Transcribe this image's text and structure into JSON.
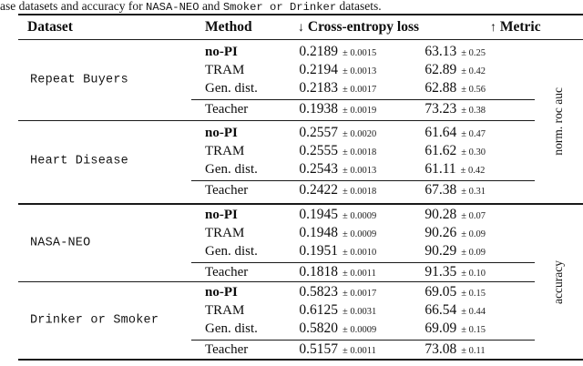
{
  "caption": {
    "prefix": "ase datasets and accuracy for ",
    "dataset_mono_1": "NASA-NEO",
    "conjunction": " and ",
    "dataset_mono_2": "Smoker or Drinker",
    "suffix": " datasets."
  },
  "header": {
    "dataset": "Dataset",
    "method": "Method",
    "ce_arrow": "↓",
    "ce_label": " Cross-entropy loss",
    "metric_arrow": "↑",
    "metric_label": " Metric"
  },
  "groups": [
    {
      "label": "norm. roc auc",
      "blocks": [
        {
          "dataset": "Repeat Buyers",
          "rows": [
            {
              "method": "no-PI",
              "ce": "0.2189",
              "ce_pm": "± 0.0015",
              "metric": "63.13",
              "metric_pm": "± 0.25"
            },
            {
              "method": "TRAM",
              "ce": "0.2194",
              "ce_pm": "± 0.0013",
              "metric": "62.89",
              "metric_pm": "± 0.42"
            },
            {
              "method": "Gen. dist.",
              "ce": "0.2183",
              "ce_pm": "± 0.0017",
              "metric": "62.88",
              "metric_pm": "± 0.56"
            },
            {
              "method": "Teacher",
              "ce": "0.1938",
              "ce_pm": "± 0.0019",
              "metric": "73.23",
              "metric_pm": "± 0.38"
            }
          ]
        },
        {
          "dataset": "Heart Disease",
          "rows": [
            {
              "method": "no-PI",
              "ce": "0.2557",
              "ce_pm": "± 0.0020",
              "metric": "61.64",
              "metric_pm": "± 0.47"
            },
            {
              "method": "TRAM",
              "ce": "0.2555",
              "ce_pm": "± 0.0018",
              "metric": "61.62",
              "metric_pm": "± 0.30"
            },
            {
              "method": "Gen. dist.",
              "ce": "0.2543",
              "ce_pm": "± 0.0013",
              "metric": "61.11",
              "metric_pm": "± 0.42"
            },
            {
              "method": "Teacher",
              "ce": "0.2422",
              "ce_pm": "± 0.0018",
              "metric": "67.38",
              "metric_pm": "± 0.31"
            }
          ]
        }
      ]
    },
    {
      "label": "accuracy",
      "blocks": [
        {
          "dataset": "NASA-NEO",
          "rows": [
            {
              "method": "no-PI",
              "ce": "0.1945",
              "ce_pm": "± 0.0009",
              "metric": "90.28",
              "metric_pm": "± 0.07"
            },
            {
              "method": "TRAM",
              "ce": "0.1948",
              "ce_pm": "± 0.0009",
              "metric": "90.26",
              "metric_pm": "± 0.09"
            },
            {
              "method": "Gen. dist.",
              "ce": "0.1951",
              "ce_pm": "± 0.0010",
              "metric": "90.29",
              "metric_pm": "± 0.09"
            },
            {
              "method": "Teacher",
              "ce": "0.1818",
              "ce_pm": "± 0.0011",
              "metric": "91.35",
              "metric_pm": "± 0.10"
            }
          ]
        },
        {
          "dataset": "Drinker or Smoker",
          "rows": [
            {
              "method": "no-PI",
              "ce": "0.5823",
              "ce_pm": "± 0.0017",
              "metric": "69.05",
              "metric_pm": "± 0.15"
            },
            {
              "method": "TRAM",
              "ce": "0.6125",
              "ce_pm": "± 0.0031",
              "metric": "66.54",
              "metric_pm": "± 0.44"
            },
            {
              "method": "Gen. dist.",
              "ce": "0.5820",
              "ce_pm": "± 0.0009",
              "metric": "69.09",
              "metric_pm": "± 0.15"
            },
            {
              "method": "Teacher",
              "ce": "0.5157",
              "ce_pm": "± 0.0011",
              "metric": "73.08",
              "metric_pm": "± 0.11"
            }
          ]
        }
      ]
    }
  ]
}
